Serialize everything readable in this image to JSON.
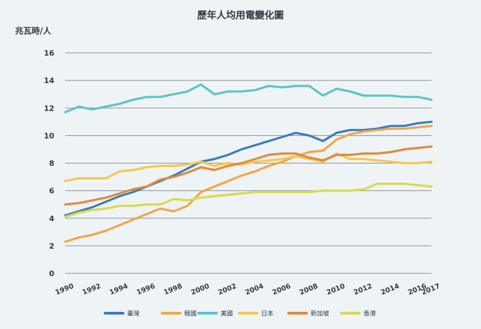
{
  "chart_data": {
    "type": "line",
    "title": "歷年人均用電變化圖",
    "ylabel": "兆瓦時/人",
    "xlabel": "",
    "ylim": [
      0,
      16
    ],
    "yticks": [
      0,
      2,
      4,
      6,
      8,
      10,
      12,
      14,
      16
    ],
    "xticks": [
      1990,
      1992,
      1994,
      1996,
      1998,
      2000,
      2002,
      2004,
      2006,
      2008,
      2010,
      2012,
      2014,
      2016,
      2017
    ],
    "grid": "horizontal",
    "legend_position": "bottom",
    "x": [
      1990,
      1991,
      1992,
      1993,
      1994,
      1995,
      1996,
      1997,
      1998,
      1999,
      2000,
      2001,
      2002,
      2003,
      2004,
      2005,
      2006,
      2007,
      2008,
      2009,
      2010,
      2011,
      2012,
      2013,
      2014,
      2015,
      2016,
      2017
    ],
    "series": [
      {
        "name": "臺灣",
        "color": "#3b7bbf",
        "values": [
          4.2,
          4.5,
          4.8,
          5.2,
          5.6,
          5.9,
          6.3,
          6.7,
          7.1,
          7.6,
          8.1,
          8.3,
          8.6,
          9.0,
          9.3,
          9.6,
          9.9,
          10.2,
          10.0,
          9.6,
          10.2,
          10.4,
          10.4,
          10.5,
          10.7,
          10.7,
          10.9,
          11.0
        ]
      },
      {
        "name": "韓國",
        "color": "#f0a743",
        "values": [
          2.3,
          2.6,
          2.8,
          3.1,
          3.5,
          3.9,
          4.3,
          4.7,
          4.5,
          4.9,
          5.9,
          6.3,
          6.7,
          7.1,
          7.4,
          7.8,
          8.1,
          8.5,
          8.8,
          8.9,
          9.7,
          10.1,
          10.3,
          10.4,
          10.5,
          10.5,
          10.6,
          10.7
        ]
      },
      {
        "name": "美國",
        "color": "#5cc4c8",
        "values": [
          11.7,
          12.1,
          11.9,
          12.1,
          12.3,
          12.6,
          12.8,
          12.8,
          13.0,
          13.2,
          13.7,
          13.0,
          13.2,
          13.2,
          13.3,
          13.6,
          13.5,
          13.6,
          13.6,
          12.9,
          13.4,
          13.2,
          12.9,
          12.9,
          12.9,
          12.8,
          12.8,
          12.6
        ]
      },
      {
        "name": "日本",
        "color": "#f5c84c",
        "values": [
          6.7,
          6.9,
          6.9,
          6.9,
          7.4,
          7.5,
          7.7,
          7.8,
          7.8,
          7.9,
          8.1,
          7.8,
          8.0,
          7.9,
          8.1,
          8.2,
          8.3,
          8.5,
          8.3,
          8.1,
          8.7,
          8.3,
          8.3,
          8.2,
          8.1,
          8.0,
          8.0,
          8.1
        ]
      },
      {
        "name": "新加坡",
        "color": "#e08a3c",
        "values": [
          5.0,
          5.1,
          5.3,
          5.5,
          5.8,
          6.1,
          6.3,
          6.8,
          7.0,
          7.3,
          7.7,
          7.5,
          7.8,
          8.0,
          8.3,
          8.6,
          8.7,
          8.7,
          8.4,
          8.2,
          8.6,
          8.6,
          8.7,
          8.7,
          8.8,
          9.0,
          9.1,
          9.2
        ]
      },
      {
        "name": "香港",
        "color": "#d6dc4a",
        "values": [
          4.1,
          4.4,
          4.6,
          4.7,
          4.9,
          4.9,
          5.0,
          5.0,
          5.4,
          5.3,
          5.5,
          5.6,
          5.7,
          5.8,
          5.9,
          5.9,
          5.9,
          5.9,
          5.9,
          6.0,
          6.0,
          6.0,
          6.1,
          6.5,
          6.5,
          6.5,
          6.4,
          6.3
        ]
      }
    ]
  }
}
